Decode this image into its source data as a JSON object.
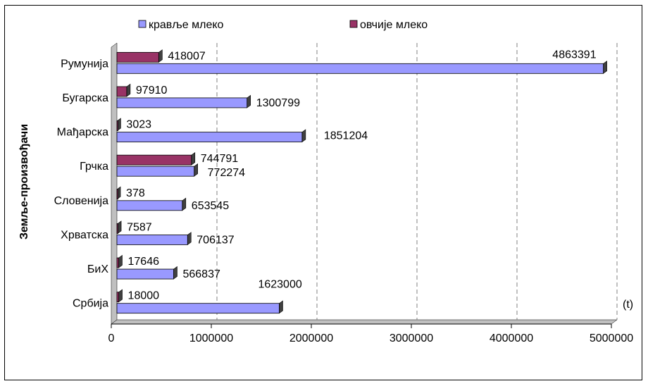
{
  "chart_data": {
    "type": "bar",
    "orientation": "horizontal",
    "categories": [
      "Србија",
      "БиХ",
      "Хрватска",
      "Словенија",
      "Грчка",
      "Мађарска",
      "Бугарска",
      "Румунија"
    ],
    "series": [
      {
        "name": "кравље млеко",
        "color": "#9999ff",
        "values": [
          1623000,
          566837,
          706137,
          653545,
          772274,
          1851204,
          1300799,
          4863391
        ]
      },
      {
        "name": "овчије млеко",
        "color": "#993366",
        "values": [
          18000,
          17646,
          7587,
          378,
          744791,
          3023,
          97910,
          418007
        ]
      }
    ],
    "title": "",
    "ylabel": "Земље-произвођачи",
    "xunit": "(t)",
    "xlim": [
      0,
      5000000
    ],
    "xticks": [
      "0",
      "1000000",
      "2000000",
      "3000000",
      "4000000",
      "5000000"
    ],
    "grid": "vertical dashed",
    "legend": "top"
  }
}
